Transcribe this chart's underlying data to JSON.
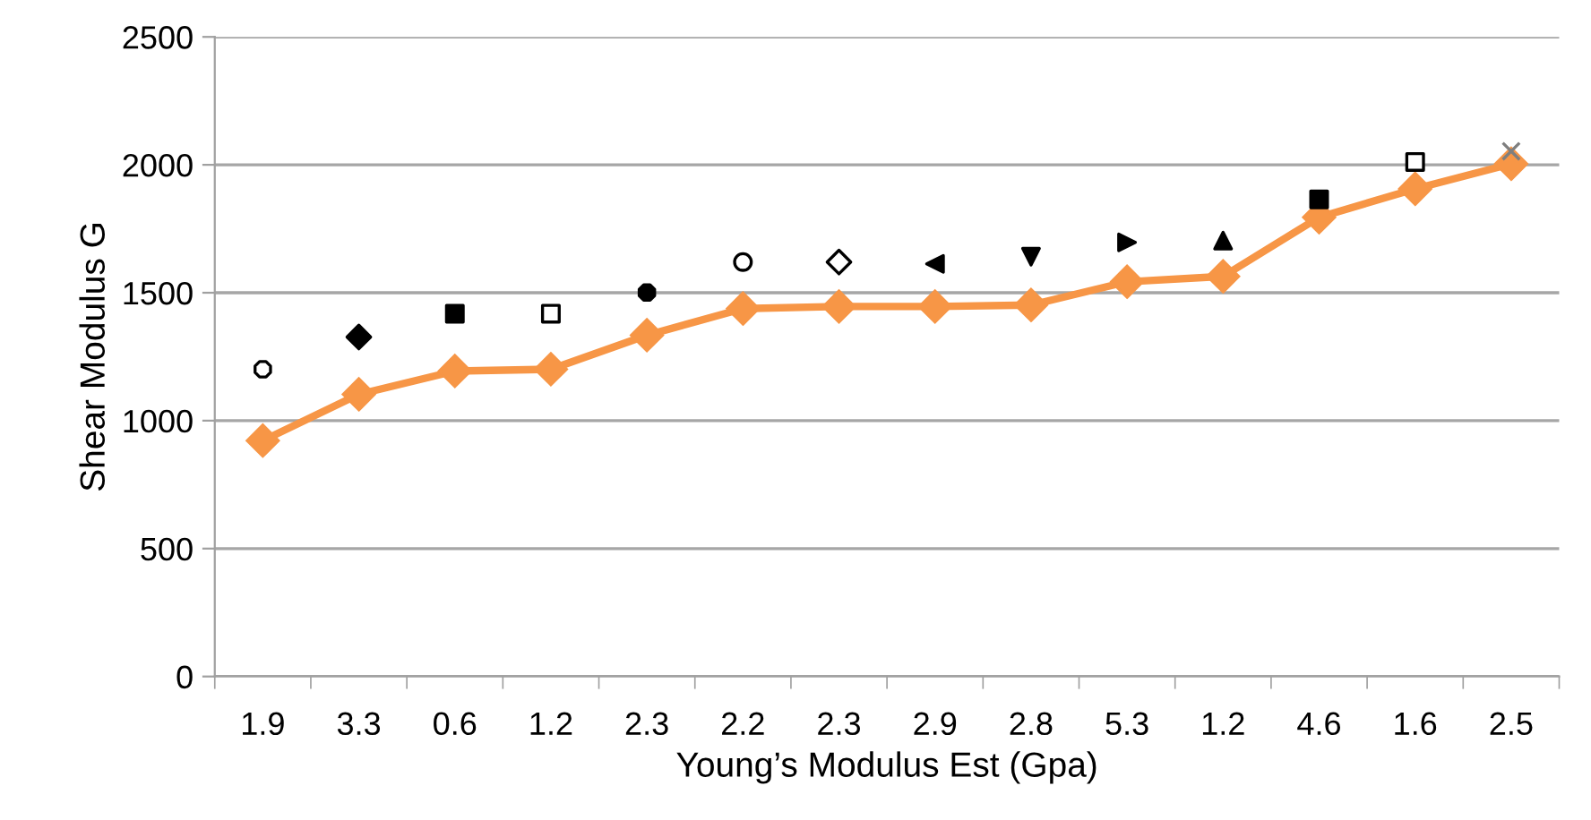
{
  "chart_data": {
    "type": "line",
    "xlabel": "Young’s Modulus Est (Gpa)",
    "ylabel": "Shear Modulus G",
    "categories": [
      "1.9",
      "3.3",
      "0.6",
      "1.2",
      "2.3",
      "2.2",
      "2.3",
      "2.9",
      "2.8",
      "5.3",
      "1.2",
      "4.6",
      "1.6",
      "2.5"
    ],
    "ylim": [
      0,
      2500
    ],
    "yticks": [
      0,
      500,
      1000,
      1500,
      2000,
      2500
    ],
    "grid": "y",
    "series": [
      {
        "color": "#f79646",
        "marker": "diamond",
        "line_style": "solid",
        "values": [
          922,
          1103,
          1194,
          1201,
          1334,
          1438,
          1446,
          1446,
          1452,
          1543,
          1564,
          1795,
          1906,
          2004
        ]
      },
      {
        "type": "scatter",
        "color": "#ffffff",
        "marker": "semicircle",
        "values": [
          1201,
          null,
          null,
          null,
          null,
          null,
          null,
          null,
          null,
          null,
          null,
          null,
          null,
          null
        ]
      },
      {
        "type": "scatter",
        "color": "#000000",
        "marker": "diamond",
        "values": [
          null,
          1327,
          null,
          null,
          null,
          null,
          null,
          null,
          null,
          null,
          null,
          null,
          null,
          null
        ]
      },
      {
        "type": "scatter",
        "color": "#000000",
        "marker": "square",
        "values": [
          null,
          null,
          1418,
          null,
          null,
          null,
          null,
          null,
          null,
          null,
          null,
          null,
          null,
          null
        ]
      },
      {
        "type": "scatter",
        "color": "#ffffff",
        "marker": "square",
        "values": [
          null,
          null,
          null,
          1418,
          null,
          null,
          null,
          null,
          null,
          null,
          null,
          null,
          null,
          null
        ]
      },
      {
        "type": "scatter",
        "color": "#000000",
        "marker": "semicircle",
        "values": [
          null,
          null,
          null,
          null,
          1501,
          null,
          null,
          null,
          null,
          null,
          null,
          null,
          null,
          null
        ]
      },
      {
        "type": "scatter",
        "color": "#ffffff",
        "marker": "circle",
        "values": [
          null,
          null,
          null,
          null,
          null,
          1620,
          null,
          null,
          null,
          null,
          null,
          null,
          null,
          null
        ]
      },
      {
        "type": "scatter",
        "color": "#ffffff",
        "marker": "diamond",
        "values": [
          null,
          null,
          null,
          null,
          null,
          null,
          1620,
          null,
          null,
          null,
          null,
          null,
          null,
          null
        ]
      },
      {
        "type": "scatter",
        "color": "#000000",
        "marker": "triangle_left",
        "values": [
          null,
          null,
          null,
          null,
          null,
          null,
          null,
          1613,
          null,
          null,
          null,
          null,
          null,
          null
        ]
      },
      {
        "type": "scatter",
        "color": "#000000",
        "marker": "triangle_down",
        "values": [
          null,
          null,
          null,
          null,
          null,
          null,
          null,
          null,
          1641,
          null,
          null,
          null,
          null,
          null
        ]
      },
      {
        "type": "scatter",
        "color": "#000000",
        "marker": "triangle_right",
        "values": [
          null,
          null,
          null,
          null,
          null,
          null,
          null,
          null,
          null,
          1697,
          null,
          null,
          null,
          null
        ]
      },
      {
        "type": "scatter",
        "color": "#000000",
        "marker": "triangle",
        "values": [
          null,
          null,
          null,
          null,
          null,
          null,
          null,
          null,
          null,
          null,
          1704,
          null,
          null,
          null
        ]
      },
      {
        "type": "scatter",
        "color": "#000000",
        "marker": "square",
        "values": [
          null,
          null,
          null,
          null,
          null,
          null,
          null,
          null,
          null,
          null,
          null,
          1865,
          null,
          null
        ]
      },
      {
        "type": "scatter",
        "color": "#ffffff",
        "marker": "square",
        "values": [
          null,
          null,
          null,
          null,
          null,
          null,
          null,
          null,
          null,
          null,
          null,
          null,
          2011,
          null
        ]
      },
      {
        "type": "scatter",
        "color": "#7f7f7f",
        "marker": "cross",
        "values": [
          null,
          null,
          null,
          null,
          null,
          null,
          null,
          null,
          null,
          null,
          null,
          null,
          null,
          2053
        ]
      }
    ]
  }
}
